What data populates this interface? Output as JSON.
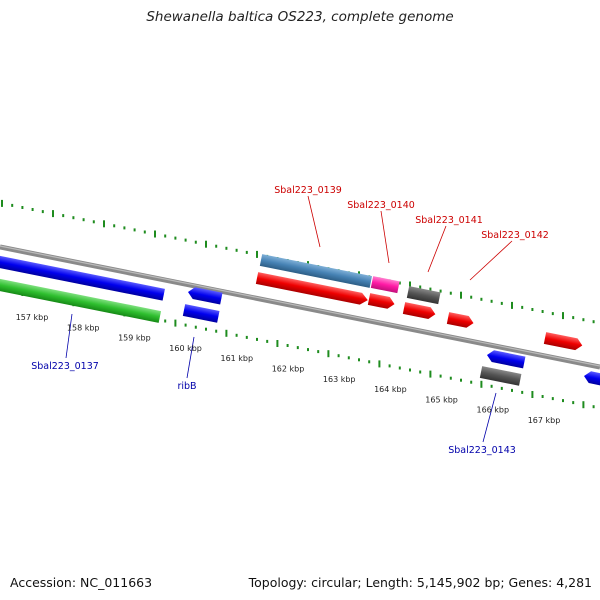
{
  "title": "Shewanella baltica OS223, complete genome",
  "footer": {
    "accession": "Accession: NC_011663",
    "summary": "Topology: circular; Length: 5,145,902 bp; Genes: 4,281"
  },
  "scale_labels": [
    "157 kbp",
    "158 kbp",
    "159 kbp",
    "160 kbp",
    "161 kbp",
    "162 kbp",
    "163 kbp",
    "164 kbp",
    "165 kbp",
    "166 kbp",
    "167 kbp"
  ],
  "gene_labels": {
    "top": [
      "Sbal223_0139",
      "Sbal223_0140",
      "Sbal223_0141",
      "Sbal223_0142"
    ],
    "bottom": [
      "Sbal223_0137",
      "ribB",
      "Sbal223_0143"
    ]
  },
  "colors": {
    "forward_cds": "#ff0000",
    "reverse_cds": "#0000ee",
    "steelblue_feature": "#4682b4",
    "magenta_feature": "#ff1aa5",
    "grey_feature": "#555555",
    "green_feature": "#22bb22",
    "backbone": "#888888",
    "ticks": "#1e8c1e"
  }
}
